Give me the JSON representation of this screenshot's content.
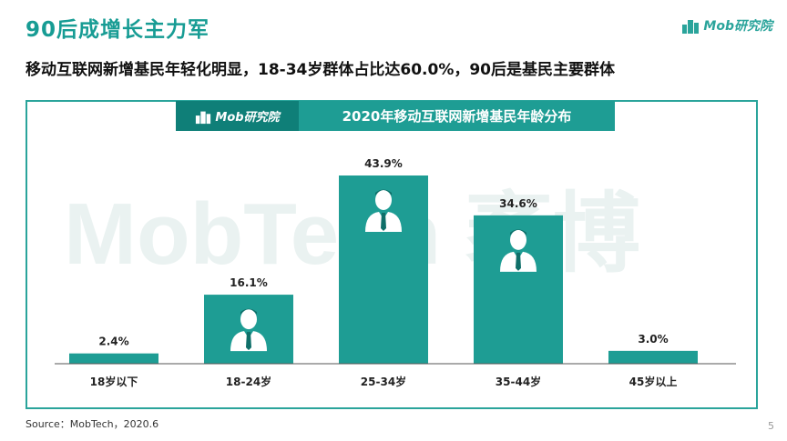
{
  "page": {
    "title": "90后成增长主力军",
    "subtitle": "移动互联网新增基民年轻化明显，18-34岁群体占比达60.0%，90后是基民主要群体",
    "brand": "Mob研究院",
    "source": "Source：MobTech，2020.6",
    "page_number": "5",
    "watermark": "MobTech 袤博"
  },
  "colors": {
    "accent": "#1e9d94",
    "bar": "#1e9d94",
    "title": "#179c94",
    "baseline": "#555555",
    "watermark": "#eaf2f1"
  },
  "icons": [
    "person-icon"
  ],
  "chart_data": {
    "type": "bar",
    "title": "2020年移动互联网新增基民年龄分布",
    "categories": [
      "18岁以下",
      "18-24岁",
      "25-34岁",
      "35-44岁",
      "45岁以上"
    ],
    "values": [
      2.4,
      16.1,
      43.9,
      34.6,
      3.0
    ],
    "value_labels": [
      "2.4%",
      "16.1%",
      "43.9%",
      "34.6%",
      "3.0%"
    ],
    "icon_on_bar": [
      false,
      true,
      true,
      true,
      false
    ],
    "ylim": [
      0,
      43.9
    ],
    "xlabel": "",
    "ylabel": "",
    "grid": false,
    "legend": "none"
  }
}
